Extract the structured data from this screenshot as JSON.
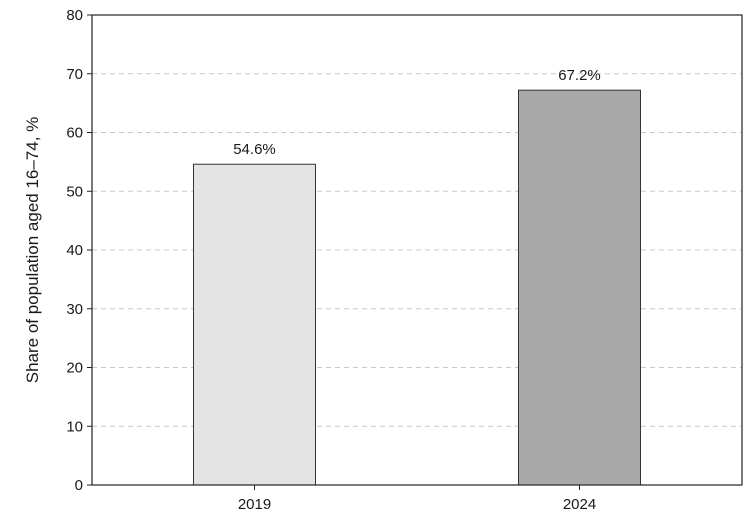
{
  "chart_data": {
    "type": "bar",
    "categories": [
      "2019",
      "2024"
    ],
    "values": [
      54.6,
      67.2
    ],
    "data_labels": [
      "54.6%",
      "67.2%"
    ],
    "bar_colors": [
      "#e3e3e3",
      "#a9a9a9"
    ],
    "bar_stroke": "#333333",
    "title": "",
    "xlabel": "",
    "ylabel": "Share of population aged 16–74, %",
    "ylim": [
      0,
      80
    ],
    "yticks": [
      0,
      10,
      20,
      30,
      40,
      50,
      60,
      70,
      80
    ],
    "grid": "horizontal-dashed",
    "grid_color": "#c8c8c8",
    "legend": "none"
  }
}
